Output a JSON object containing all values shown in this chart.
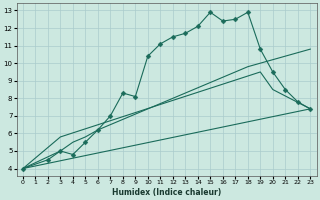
{
  "xlabel": "Humidex (Indice chaleur)",
  "bg_color": "#cce8e0",
  "grid_color": "#aacccc",
  "line_color": "#1a6b5a",
  "xlim": [
    -0.5,
    23.5
  ],
  "ylim": [
    3.6,
    13.4
  ],
  "xticks": [
    0,
    1,
    2,
    3,
    4,
    5,
    6,
    7,
    8,
    9,
    10,
    11,
    12,
    13,
    14,
    15,
    16,
    17,
    18,
    19,
    20,
    21,
    22,
    23
  ],
  "yticks": [
    4,
    5,
    6,
    7,
    8,
    9,
    10,
    11,
    12,
    13
  ],
  "series1_x": [
    0,
    2,
    3,
    4,
    5,
    6,
    7,
    8,
    9,
    10,
    11,
    12,
    13,
    14,
    15,
    16,
    17,
    18,
    19,
    20,
    21,
    22,
    23
  ],
  "series1_y": [
    4.0,
    4.5,
    5.0,
    4.8,
    5.5,
    6.2,
    7.0,
    8.3,
    8.1,
    10.4,
    11.1,
    11.5,
    11.7,
    12.1,
    12.9,
    12.4,
    12.5,
    12.9,
    10.8,
    9.5,
    8.5,
    7.8,
    7.4
  ],
  "series2_x": [
    0,
    3,
    19,
    20,
    23
  ],
  "series2_y": [
    4.0,
    5.8,
    9.5,
    8.5,
    7.4
  ],
  "series3_x": [
    0,
    3,
    4,
    5,
    6,
    7,
    8,
    9,
    10,
    11,
    12,
    13,
    14,
    15,
    16,
    17,
    18,
    23
  ],
  "series3_y": [
    4.0,
    5.0,
    5.5,
    5.8,
    6.2,
    6.5,
    6.8,
    7.1,
    7.4,
    7.7,
    8.0,
    8.3,
    8.6,
    8.9,
    9.2,
    9.5,
    9.8,
    10.8
  ],
  "series4_x": [
    0,
    23
  ],
  "series4_y": [
    4.0,
    7.4
  ]
}
